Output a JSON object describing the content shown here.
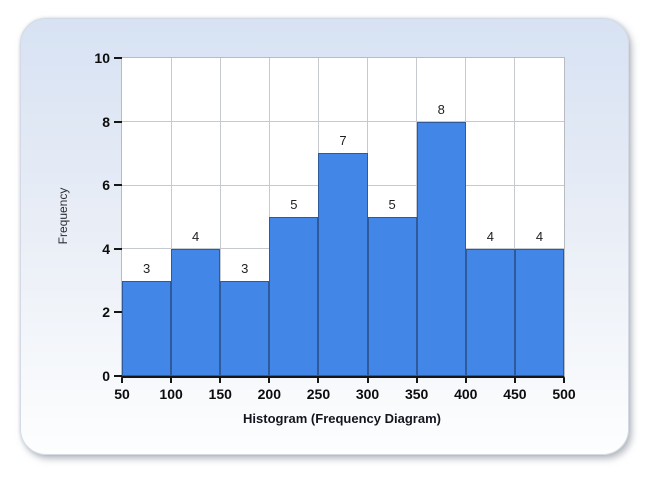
{
  "chart_data": {
    "type": "bar",
    "subtype": "histogram",
    "title": "",
    "xlabel": "Histogram (Frequency Diagram)",
    "ylabel": "Frequency",
    "bin_edges": [
      50,
      100,
      150,
      200,
      250,
      300,
      350,
      400,
      450,
      500
    ],
    "values": [
      3,
      4,
      3,
      5,
      7,
      5,
      8,
      4,
      4
    ],
    "bar_value_labels": [
      "3",
      "4",
      "3",
      "5",
      "7",
      "5",
      "8",
      "4",
      "4"
    ],
    "xticks": [
      50,
      100,
      150,
      200,
      250,
      300,
      350,
      400,
      450,
      500
    ],
    "yticks": [
      0,
      2,
      4,
      6,
      8,
      10
    ],
    "ylim": [
      0,
      10
    ],
    "grid": true,
    "legend": null,
    "colors": {
      "bar_fill": "#4287e8",
      "bar_border": "#2e5a9c",
      "gridline": "#c6c9ce",
      "axis": "#161616",
      "tick": "#161616",
      "card_gradient_top": "#d7e2f3",
      "card_gradient_mid": "#e8edf6",
      "card_gradient_bottom": "#fdfefe",
      "plot_background": "#ffffff"
    }
  }
}
